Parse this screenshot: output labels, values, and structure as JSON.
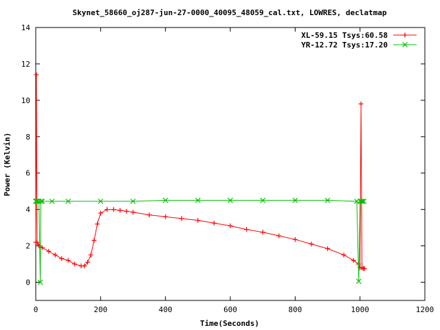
{
  "chart_data": {
    "type": "line",
    "title": "Skynet_58660_oj287-jun-27-0000_40095_48059_cal.txt, LOWRES, declatmap",
    "xlabel": "Time(Seconds)",
    "ylabel": "Power (Kelvin)",
    "xlim": [
      0,
      1200
    ],
    "ylim": [
      -1,
      14
    ],
    "xticks": [
      0,
      200,
      400,
      600,
      800,
      1000,
      1200
    ],
    "yticks": [
      0,
      2,
      4,
      6,
      8,
      10,
      12,
      14
    ],
    "legend_position": "top-right",
    "series": [
      {
        "name": "XL-59.15 Tsys:60.58",
        "color": "#ff0000",
        "marker": "plus",
        "x": [
          0,
          2,
          4,
          6,
          10,
          20,
          40,
          60,
          80,
          100,
          120,
          140,
          150,
          160,
          170,
          180,
          190,
          200,
          220,
          240,
          260,
          280,
          300,
          350,
          400,
          450,
          500,
          550,
          600,
          650,
          700,
          750,
          800,
          850,
          900,
          950,
          980,
          995,
          1000,
          1003,
          1006,
          1010,
          1014
        ],
        "y": [
          2.2,
          11.4,
          2.2,
          2.1,
          2.0,
          1.9,
          1.7,
          1.5,
          1.3,
          1.2,
          1.0,
          0.9,
          0.9,
          1.1,
          1.5,
          2.3,
          3.2,
          3.8,
          4.0,
          4.0,
          3.95,
          3.9,
          3.85,
          3.7,
          3.6,
          3.5,
          3.4,
          3.25,
          3.1,
          2.9,
          2.75,
          2.55,
          2.35,
          2.1,
          1.85,
          1.5,
          1.2,
          1.0,
          0.8,
          9.8,
          0.8,
          0.75,
          0.75
        ]
      },
      {
        "name": "YR-12.72 Tsys:17.20",
        "color": "#00c000",
        "marker": "cross",
        "x": [
          0,
          2,
          4,
          10,
          14,
          16,
          20,
          50,
          100,
          200,
          300,
          400,
          500,
          600,
          700,
          800,
          900,
          990,
          996,
          1000,
          1004,
          1008,
          1012
        ],
        "y": [
          4.45,
          4.45,
          4.45,
          4.45,
          0.0,
          4.45,
          4.45,
          4.45,
          4.45,
          4.45,
          4.45,
          4.5,
          4.5,
          4.5,
          4.5,
          4.5,
          4.5,
          4.45,
          0.05,
          4.45,
          4.45,
          4.45,
          4.45
        ]
      }
    ]
  }
}
